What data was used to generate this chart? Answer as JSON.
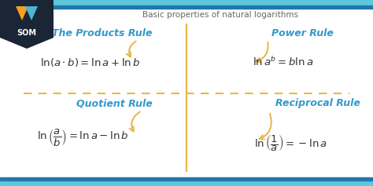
{
  "title": "Basic properties of natural logarithms",
  "title_color": "#666666",
  "title_fontsize": 7.5,
  "bg_color": "#ffffff",
  "header_bar_color": "#5bc8dc",
  "header_bar2_color": "#2277aa",
  "divider_color": "#e8b84b",
  "rule_title_color": "#3399cc",
  "formula_color": "#333333",
  "arrow_color": "#e8b84b",
  "logo_bg": "#1a2535",
  "logo_accent_orange": "#f5a020",
  "logo_accent_blue": "#4ab5d4",
  "top_left_rule_title": "The Products Rule",
  "top_left_formula": "$\\ln(a \\cdot b) = \\ln a + \\ln b$",
  "top_right_rule_title": "Power Rule",
  "top_right_formula": "$\\ln a^{b} = b\\ln a$",
  "bottom_left_rule_title": "Quotient Rule",
  "bottom_left_formula": "$\\ln \\left(\\dfrac{a}{b}\\right) = \\ln a - \\ln b$",
  "bottom_right_rule_title": "Reciprocal Rule",
  "bottom_right_formula": "$\\ln \\left(\\dfrac{1}{a}\\right) = -\\ln a$"
}
